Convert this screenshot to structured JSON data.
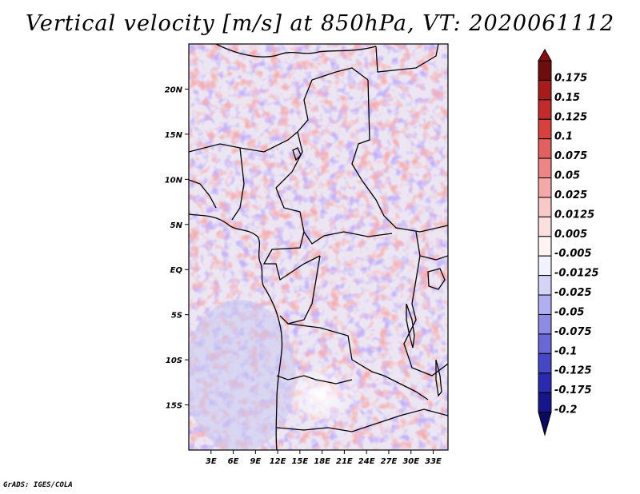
{
  "title": "Vertical velocity [m/s] at 850hPa, VT: 2020061112",
  "footer": "GrADS: IGES/COLA",
  "map": {
    "lon_range": [
      0,
      35
    ],
    "lat_range": [
      -20,
      25
    ],
    "lat_ticks": [
      {
        "value": 20,
        "label": "20N"
      },
      {
        "value": 15,
        "label": "15N"
      },
      {
        "value": 10,
        "label": "10N"
      },
      {
        "value": 5,
        "label": "5N"
      },
      {
        "value": 0,
        "label": "EQ"
      },
      {
        "value": -5,
        "label": "5S"
      },
      {
        "value": -10,
        "label": "10S"
      },
      {
        "value": -15,
        "label": "15S"
      }
    ],
    "lon_ticks": [
      {
        "value": 3,
        "label": "3E"
      },
      {
        "value": 6,
        "label": "6E"
      },
      {
        "value": 9,
        "label": "9E"
      },
      {
        "value": 12,
        "label": "12E"
      },
      {
        "value": 15,
        "label": "15E"
      },
      {
        "value": 18,
        "label": "18E"
      },
      {
        "value": 21,
        "label": "21E"
      },
      {
        "value": 24,
        "label": "24E"
      },
      {
        "value": 27,
        "label": "27E"
      },
      {
        "value": 30,
        "label": "30E"
      },
      {
        "value": 33,
        "label": "33E"
      }
    ]
  },
  "colorbar": {
    "bins": [
      {
        "color": "#6e0d0d",
        "label": "0.175"
      },
      {
        "color": "#a81b1b",
        "label": "0.15"
      },
      {
        "color": "#c42a2a",
        "label": "0.125"
      },
      {
        "color": "#d84040",
        "label": "0.1"
      },
      {
        "color": "#e46060",
        "label": "0.075"
      },
      {
        "color": "#ee8585",
        "label": "0.05"
      },
      {
        "color": "#f5a8a8",
        "label": "0.025"
      },
      {
        "color": "#f9c8c8",
        "label": "0.0125"
      },
      {
        "color": "#fce0e0",
        "label": "0.005"
      },
      {
        "color": "#fff4f4",
        "label": "-0.005"
      },
      {
        "color": "#f2f2ff",
        "label": "-0.0125"
      },
      {
        "color": "#d4d4f8",
        "label": "-0.025"
      },
      {
        "color": "#b0b0f0",
        "label": "-0.05"
      },
      {
        "color": "#8c8ce6",
        "label": "-0.075"
      },
      {
        "color": "#6868d8",
        "label": "-0.1"
      },
      {
        "color": "#4646c8",
        "label": "-0.125"
      },
      {
        "color": "#2a2ab0",
        "label": "-0.175"
      },
      {
        "color": "#16168c",
        "label": "-0.2"
      },
      {
        "color": "#0a0a60",
        "label": ""
      }
    ],
    "top_color": "#8a1010"
  }
}
